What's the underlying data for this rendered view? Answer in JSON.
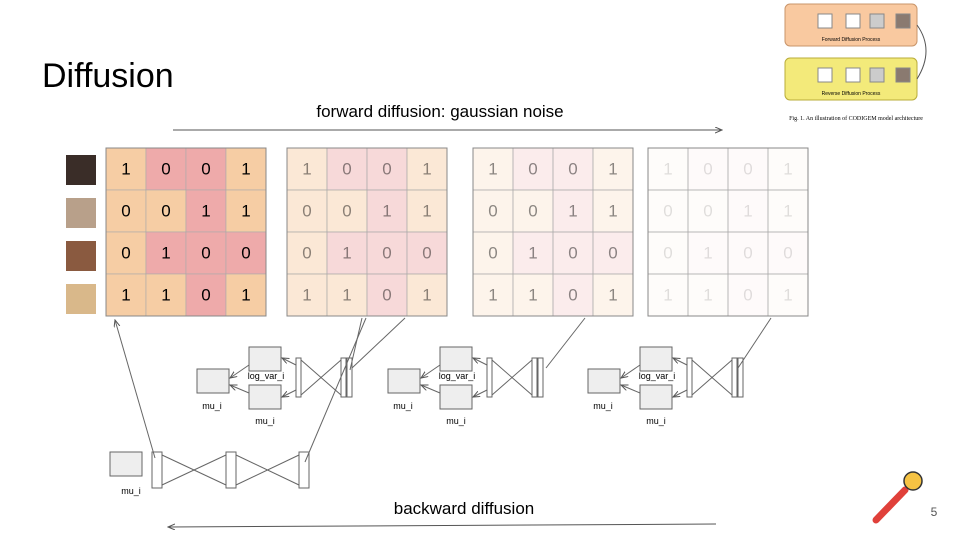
{
  "header": {
    "title": "Diffusion",
    "page_number": "5"
  },
  "forward_label": "forward diffusion: gaussian noise",
  "backward_label": "backward diffusion",
  "grids": [
    {
      "rows": [
        [
          1,
          0,
          0,
          1
        ],
        [
          0,
          0,
          1,
          1
        ],
        [
          0,
          1,
          0,
          0
        ],
        [
          1,
          1,
          0,
          1
        ]
      ]
    },
    {
      "rows": [
        [
          1,
          0,
          0,
          1
        ],
        [
          0,
          0,
          1,
          1
        ],
        [
          0,
          1,
          0,
          0
        ],
        [
          1,
          1,
          0,
          1
        ]
      ]
    },
    {
      "rows": [
        [
          1,
          0,
          0,
          1
        ],
        [
          0,
          0,
          1,
          1
        ],
        [
          0,
          1,
          0,
          0
        ],
        [
          1,
          1,
          0,
          1
        ]
      ]
    },
    {
      "rows": [
        [
          1,
          0,
          0,
          1
        ],
        [
          0,
          0,
          1,
          1
        ],
        [
          0,
          1,
          0,
          0
        ],
        [
          1,
          1,
          0,
          1
        ]
      ]
    }
  ],
  "networks": [
    {
      "log_var": "log_var_i",
      "mu_top": "mu_i",
      "mu_left": "mu_i"
    },
    {
      "log_var": "log_var_i",
      "mu_top": "mu_i",
      "mu_left": "mu_i"
    },
    {
      "log_var": "log_var_i",
      "mu_top": "mu_i",
      "mu_left": "mu_i"
    }
  ],
  "decoder": {
    "mu": "mu_i"
  },
  "inset": {
    "forward": "Forward Diffusion Process",
    "reverse": "Reverse Diffusion Process",
    "caption": "Fig. 1. An illustration of CODIGEM model architecture"
  }
}
